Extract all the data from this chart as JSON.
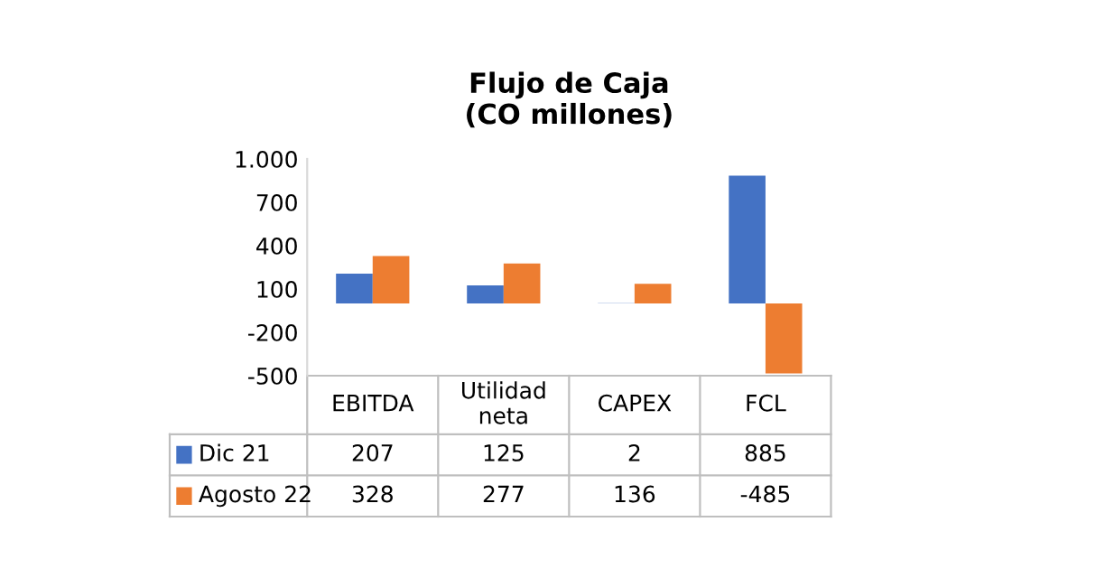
{
  "chart_data": {
    "type": "bar",
    "title": "Flujo de Caja\n(CO millones)",
    "categories": [
      "EBITDA",
      "Utilidad neta",
      "CAPEX",
      "FCL"
    ],
    "series": [
      {
        "name": "Dic 21",
        "color": "#4472c4",
        "values": [
          207,
          125,
          2,
          885
        ]
      },
      {
        "name": "Agosto 22",
        "color": "#ed7d31",
        "values": [
          328,
          277,
          136,
          -485
        ]
      }
    ],
    "ylim": [
      -500,
      1000
    ],
    "yticks": [
      {
        "value": 1000,
        "label": "1.000"
      },
      700,
      400,
      100,
      -200,
      -500
    ],
    "grid": false,
    "legend": "bottom",
    "data_labels": true
  }
}
